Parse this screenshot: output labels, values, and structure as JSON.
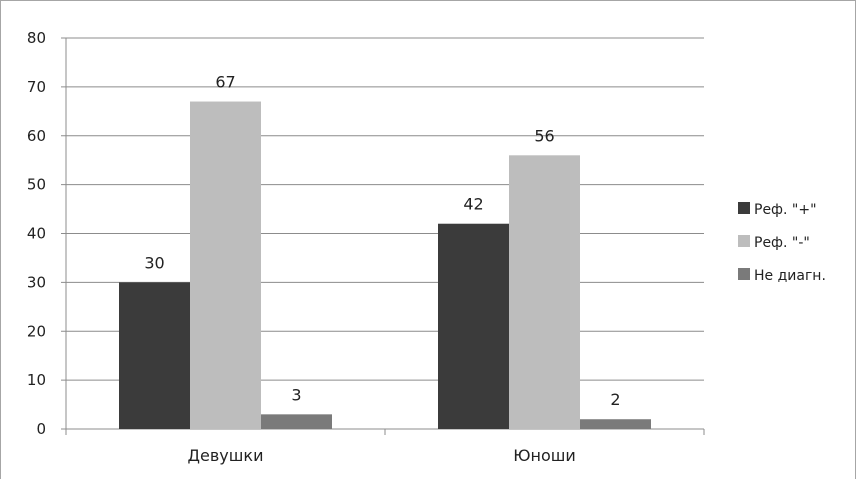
{
  "chart_data": {
    "type": "bar",
    "categories": [
      "Девушки",
      "Юноши"
    ],
    "series": [
      {
        "name": "Реф. \"+\"",
        "values": [
          30,
          42
        ],
        "color": "#3b3b3b"
      },
      {
        "name": "Реф. \"-\"",
        "values": [
          67,
          56
        ],
        "color": "#bdbdbd"
      },
      {
        "name": "Не диагн.",
        "values": [
          3,
          2
        ],
        "color": "#7a7a7a"
      }
    ],
    "ylim": [
      0,
      80
    ],
    "yticks": [
      0,
      10,
      20,
      30,
      40,
      50,
      60,
      70,
      80
    ],
    "grid": true,
    "legend": "right",
    "data_labels": true
  }
}
